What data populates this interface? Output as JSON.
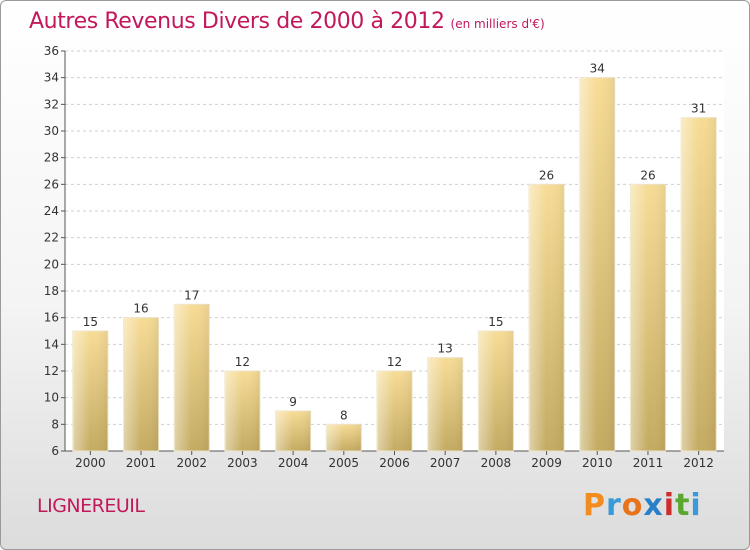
{
  "header": {
    "title": "Autres Revenus Divers de 2000 à 2012",
    "subtitle": "(en milliers d'€)"
  },
  "footer": {
    "place": "LIGNEREUIL",
    "brand": "Proxiti"
  },
  "colors": {
    "title": "#c2185b",
    "bar_light": "#f7dc96",
    "bar_dark": "#c4ab62",
    "brand_letters": [
      "#f28c1e",
      "#3a9ad9",
      "#e8731a",
      "#2a7fc9",
      "#cc2e2e",
      "#5aa82e",
      "#3a9ad9"
    ]
  },
  "chart_data": {
    "type": "bar",
    "title": "Autres Revenus Divers de 2000 à 2012",
    "subtitle": "(en milliers d'€)",
    "xlabel": "",
    "ylabel": "",
    "categories": [
      "2000",
      "2001",
      "2002",
      "2003",
      "2004",
      "2005",
      "2006",
      "2007",
      "2008",
      "2009",
      "2010",
      "2011",
      "2012"
    ],
    "values": [
      15,
      16,
      17,
      12,
      9,
      8,
      12,
      13,
      15,
      26,
      34,
      26,
      31
    ],
    "ylim": [
      6,
      36
    ],
    "yticks": [
      6,
      8,
      10,
      12,
      14,
      16,
      18,
      20,
      22,
      24,
      26,
      28,
      30,
      32,
      34,
      36
    ],
    "grid": "horizontal-dashed",
    "legend": "none"
  }
}
